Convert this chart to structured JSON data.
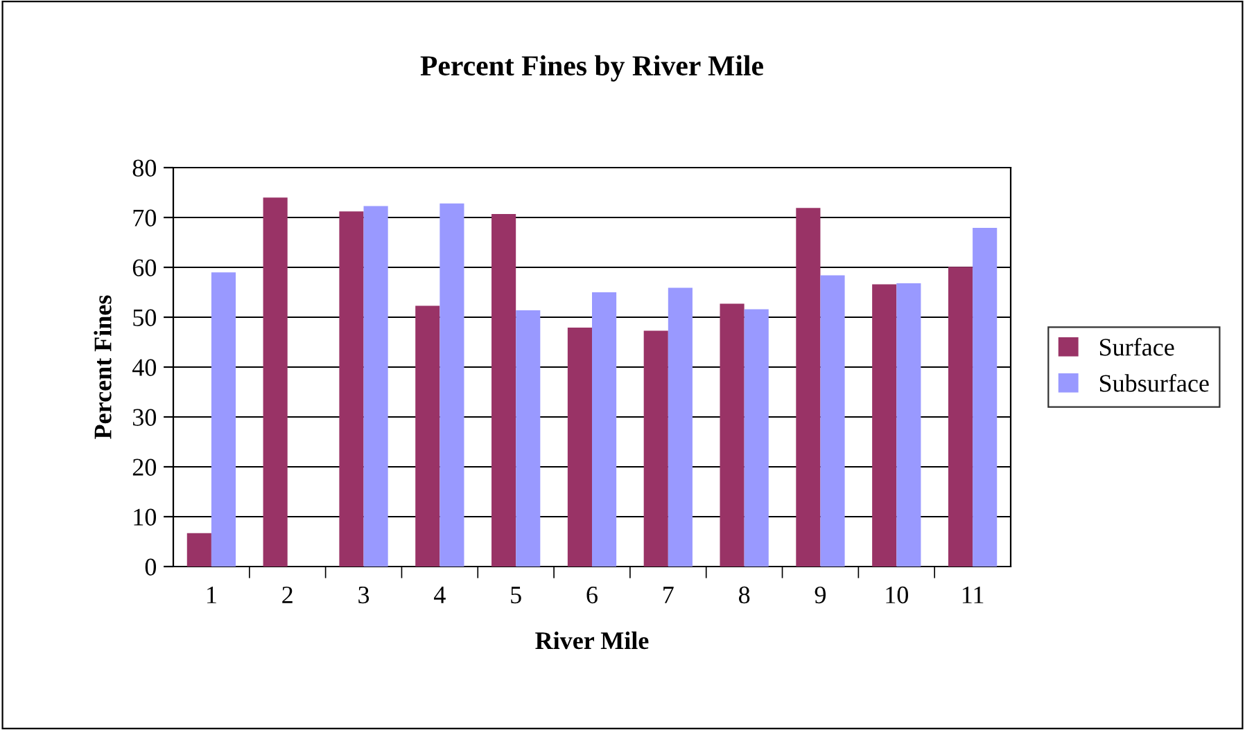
{
  "chart_data": {
    "type": "bar",
    "title": "Percent Fines by River Mile",
    "xlabel": "River Mile",
    "ylabel": "Percent Fines",
    "categories": [
      "1",
      "2",
      "3",
      "4",
      "5",
      "6",
      "7",
      "8",
      "9",
      "10",
      "11"
    ],
    "series": [
      {
        "name": "Surface",
        "color": "#993366",
        "values": [
          6.7,
          74.0,
          71.2,
          52.3,
          70.7,
          47.9,
          47.3,
          52.7,
          71.9,
          56.6,
          60.1
        ]
      },
      {
        "name": "Subsurface",
        "color": "#9999ff",
        "values": [
          59.0,
          null,
          72.3,
          72.8,
          51.4,
          55.0,
          55.9,
          51.6,
          58.4,
          56.8,
          67.9
        ]
      }
    ],
    "ylim": [
      0,
      80
    ],
    "yticks": [
      0,
      10,
      20,
      30,
      40,
      50,
      60,
      70,
      80
    ],
    "grid": "y",
    "legend": "right"
  }
}
